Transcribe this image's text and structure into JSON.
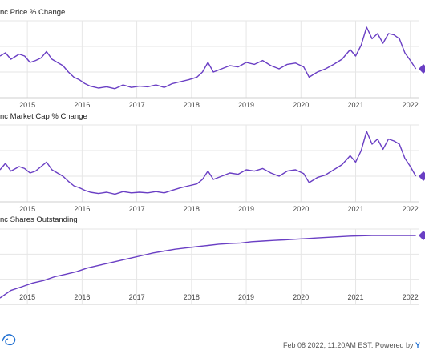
{
  "panels": [
    {
      "title": "nc Price % Change",
      "chart_data": {
        "type": "line",
        "x_ticks": [
          "2015",
          "2016",
          "2017",
          "2018",
          "2019",
          "2020",
          "2021",
          "2022"
        ],
        "series": [
          {
            "values": [
              [
                2014.5,
                0.55
              ],
              [
                2014.6,
                0.6
              ],
              [
                2014.7,
                0.5
              ],
              [
                2014.85,
                0.58
              ],
              [
                2014.95,
                0.55
              ],
              [
                2015.05,
                0.45
              ],
              [
                2015.15,
                0.48
              ],
              [
                2015.25,
                0.52
              ],
              [
                2015.35,
                0.62
              ],
              [
                2015.45,
                0.5
              ],
              [
                2015.55,
                0.45
              ],
              [
                2015.65,
                0.4
              ],
              [
                2015.75,
                0.3
              ],
              [
                2015.85,
                0.22
              ],
              [
                2015.95,
                0.18
              ],
              [
                2016.05,
                0.12
              ],
              [
                2016.15,
                0.08
              ],
              [
                2016.3,
                0.05
              ],
              [
                2016.45,
                0.07
              ],
              [
                2016.6,
                0.04
              ],
              [
                2016.75,
                0.1
              ],
              [
                2016.9,
                0.06
              ],
              [
                2017.05,
                0.08
              ],
              [
                2017.2,
                0.07
              ],
              [
                2017.35,
                0.1
              ],
              [
                2017.5,
                0.06
              ],
              [
                2017.65,
                0.12
              ],
              [
                2017.8,
                0.15
              ],
              [
                2017.95,
                0.18
              ],
              [
                2018.1,
                0.22
              ],
              [
                2018.2,
                0.3
              ],
              [
                2018.3,
                0.45
              ],
              [
                2018.4,
                0.3
              ],
              [
                2018.55,
                0.35
              ],
              [
                2018.7,
                0.4
              ],
              [
                2018.85,
                0.38
              ],
              [
                2019.0,
                0.45
              ],
              [
                2019.15,
                0.42
              ],
              [
                2019.3,
                0.48
              ],
              [
                2019.45,
                0.4
              ],
              [
                2019.6,
                0.35
              ],
              [
                2019.75,
                0.42
              ],
              [
                2019.9,
                0.44
              ],
              [
                2020.05,
                0.38
              ],
              [
                2020.15,
                0.22
              ],
              [
                2020.3,
                0.3
              ],
              [
                2020.45,
                0.35
              ],
              [
                2020.6,
                0.42
              ],
              [
                2020.75,
                0.5
              ],
              [
                2020.9,
                0.65
              ],
              [
                2021.0,
                0.55
              ],
              [
                2021.1,
                0.72
              ],
              [
                2021.2,
                1.0
              ],
              [
                2021.3,
                0.82
              ],
              [
                2021.4,
                0.9
              ],
              [
                2021.5,
                0.75
              ],
              [
                2021.6,
                0.9
              ],
              [
                2021.7,
                0.88
              ],
              [
                2021.8,
                0.82
              ],
              [
                2021.9,
                0.6
              ],
              [
                2022.0,
                0.48
              ],
              [
                2022.1,
                0.35
              ]
            ]
          }
        ],
        "end_marker_color": "#6a3fc4"
      }
    },
    {
      "title": "nc Market Cap % Change",
      "chart_data": {
        "type": "line",
        "x_ticks": [
          "2015",
          "2016",
          "2017",
          "2018",
          "2019",
          "2020",
          "2021",
          "2022"
        ],
        "series": [
          {
            "values": [
              [
                2014.5,
                0.4
              ],
              [
                2014.6,
                0.5
              ],
              [
                2014.7,
                0.38
              ],
              [
                2014.85,
                0.45
              ],
              [
                2014.95,
                0.42
              ],
              [
                2015.05,
                0.35
              ],
              [
                2015.15,
                0.38
              ],
              [
                2015.25,
                0.45
              ],
              [
                2015.35,
                0.52
              ],
              [
                2015.45,
                0.4
              ],
              [
                2015.55,
                0.35
              ],
              [
                2015.65,
                0.3
              ],
              [
                2015.75,
                0.22
              ],
              [
                2015.85,
                0.15
              ],
              [
                2015.95,
                0.12
              ],
              [
                2016.05,
                0.08
              ],
              [
                2016.15,
                0.05
              ],
              [
                2016.3,
                0.03
              ],
              [
                2016.45,
                0.05
              ],
              [
                2016.6,
                0.02
              ],
              [
                2016.75,
                0.06
              ],
              [
                2016.9,
                0.04
              ],
              [
                2017.05,
                0.05
              ],
              [
                2017.2,
                0.04
              ],
              [
                2017.35,
                0.06
              ],
              [
                2017.5,
                0.04
              ],
              [
                2017.65,
                0.08
              ],
              [
                2017.8,
                0.12
              ],
              [
                2017.95,
                0.15
              ],
              [
                2018.1,
                0.18
              ],
              [
                2018.2,
                0.25
              ],
              [
                2018.3,
                0.38
              ],
              [
                2018.4,
                0.25
              ],
              [
                2018.55,
                0.3
              ],
              [
                2018.7,
                0.35
              ],
              [
                2018.85,
                0.33
              ],
              [
                2019.0,
                0.4
              ],
              [
                2019.15,
                0.38
              ],
              [
                2019.3,
                0.42
              ],
              [
                2019.45,
                0.35
              ],
              [
                2019.6,
                0.3
              ],
              [
                2019.75,
                0.38
              ],
              [
                2019.9,
                0.4
              ],
              [
                2020.05,
                0.34
              ],
              [
                2020.15,
                0.2
              ],
              [
                2020.3,
                0.28
              ],
              [
                2020.45,
                0.32
              ],
              [
                2020.6,
                0.4
              ],
              [
                2020.75,
                0.48
              ],
              [
                2020.9,
                0.62
              ],
              [
                2021.0,
                0.52
              ],
              [
                2021.1,
                0.7
              ],
              [
                2021.2,
                1.0
              ],
              [
                2021.3,
                0.8
              ],
              [
                2021.4,
                0.88
              ],
              [
                2021.5,
                0.72
              ],
              [
                2021.6,
                0.88
              ],
              [
                2021.7,
                0.85
              ],
              [
                2021.8,
                0.8
              ],
              [
                2021.9,
                0.58
              ],
              [
                2022.0,
                0.45
              ],
              [
                2022.1,
                0.3
              ]
            ]
          }
        ],
        "end_marker_color": "#6a3fc4"
      }
    },
    {
      "title": "nc Shares Outstanding",
      "chart_data": {
        "type": "line",
        "x_ticks": [
          "2015",
          "2016",
          "2017",
          "2018",
          "2019",
          "2020",
          "2021",
          "2022"
        ],
        "series": [
          {
            "values": [
              [
                2014.5,
                0.0
              ],
              [
                2014.7,
                0.12
              ],
              [
                2014.9,
                0.18
              ],
              [
                2015.1,
                0.24
              ],
              [
                2015.3,
                0.28
              ],
              [
                2015.5,
                0.34
              ],
              [
                2015.7,
                0.38
              ],
              [
                2015.9,
                0.42
              ],
              [
                2016.1,
                0.48
              ],
              [
                2016.3,
                0.52
              ],
              [
                2016.5,
                0.56
              ],
              [
                2016.7,
                0.6
              ],
              [
                2016.9,
                0.64
              ],
              [
                2017.1,
                0.68
              ],
              [
                2017.3,
                0.72
              ],
              [
                2017.5,
                0.75
              ],
              [
                2017.7,
                0.78
              ],
              [
                2017.9,
                0.8
              ],
              [
                2018.1,
                0.82
              ],
              [
                2018.3,
                0.84
              ],
              [
                2018.5,
                0.86
              ],
              [
                2018.7,
                0.87
              ],
              [
                2018.9,
                0.88
              ],
              [
                2019.1,
                0.9
              ],
              [
                2019.3,
                0.91
              ],
              [
                2019.5,
                0.92
              ],
              [
                2019.7,
                0.93
              ],
              [
                2019.9,
                0.94
              ],
              [
                2020.1,
                0.95
              ],
              [
                2020.3,
                0.96
              ],
              [
                2020.5,
                0.97
              ],
              [
                2020.7,
                0.98
              ],
              [
                2020.9,
                0.99
              ],
              [
                2021.1,
                0.995
              ],
              [
                2021.3,
                1.0
              ],
              [
                2021.5,
                1.0
              ],
              [
                2021.7,
                1.0
              ],
              [
                2021.9,
                1.0
              ],
              [
                2022.1,
                1.0
              ]
            ]
          }
        ],
        "end_marker_color": "#6a3fc4"
      }
    }
  ],
  "footer": {
    "text": "Feb 08 2022, 11:20AM EST. Powered by",
    "brand": "Y"
  },
  "colors": {
    "line": "#6a3fc4",
    "grid": "#e6e6e6",
    "axis_text": "#444444"
  }
}
